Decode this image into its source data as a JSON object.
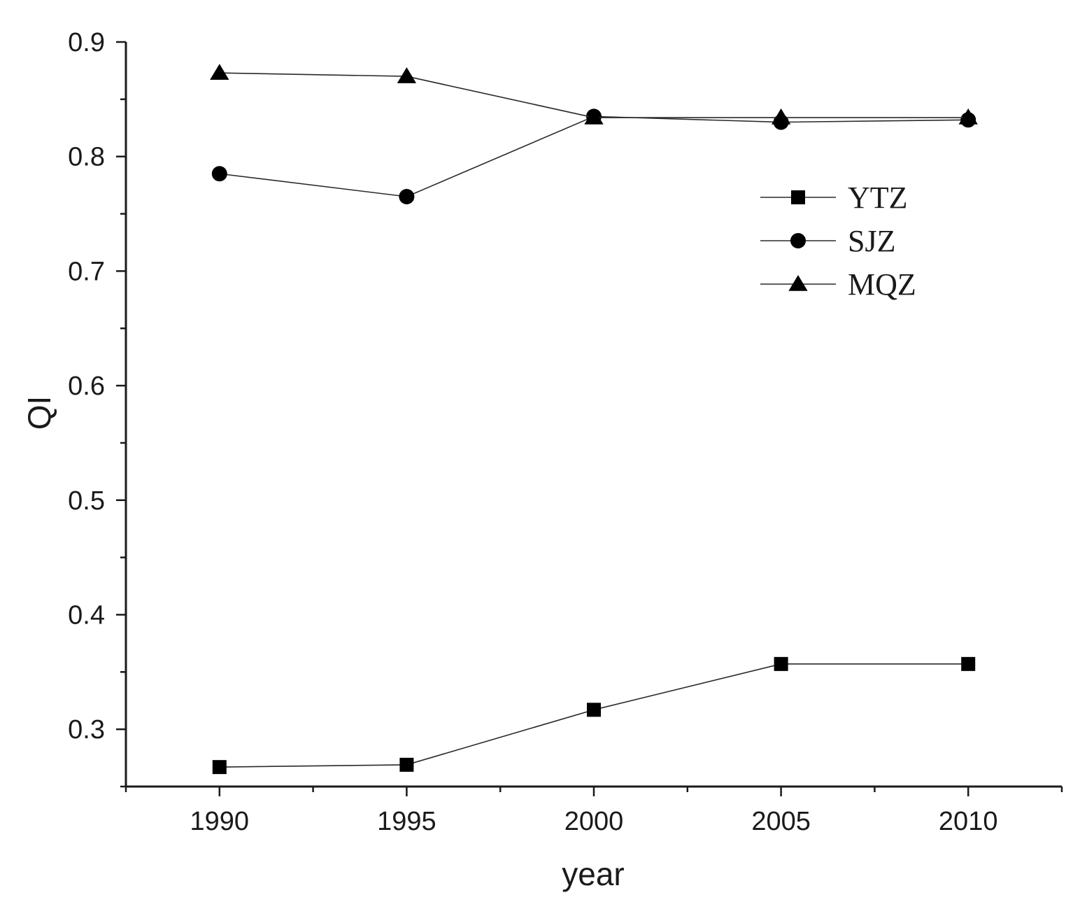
{
  "chart_data": {
    "type": "line",
    "xlabel": "year",
    "ylabel": "QI",
    "x": [
      1990,
      1995,
      2000,
      2005,
      2010
    ],
    "xlim": [
      1987.5,
      2012.5
    ],
    "ylim": [
      0.25,
      0.9
    ],
    "x_ticks": [
      "1990",
      "1995",
      "2000",
      "2005",
      "2010"
    ],
    "y_ticks": [
      "0.3",
      "0.4",
      "0.5",
      "0.6",
      "0.7",
      "0.8",
      "0.9"
    ],
    "grid": false,
    "legend_position": "top-right",
    "series": [
      {
        "name": "YTZ",
        "marker": "square",
        "values": [
          0.267,
          0.269,
          0.317,
          0.357,
          0.357
        ]
      },
      {
        "name": "SJZ",
        "marker": "circle",
        "values": [
          0.785,
          0.765,
          0.835,
          0.83,
          0.832
        ]
      },
      {
        "name": "MQZ",
        "marker": "triangle",
        "values": [
          0.873,
          0.87,
          0.834,
          0.834,
          0.834
        ]
      }
    ],
    "colors": {
      "line": "#2a2a2a",
      "marker": "#000000",
      "axis": "#1a1a1a"
    }
  }
}
